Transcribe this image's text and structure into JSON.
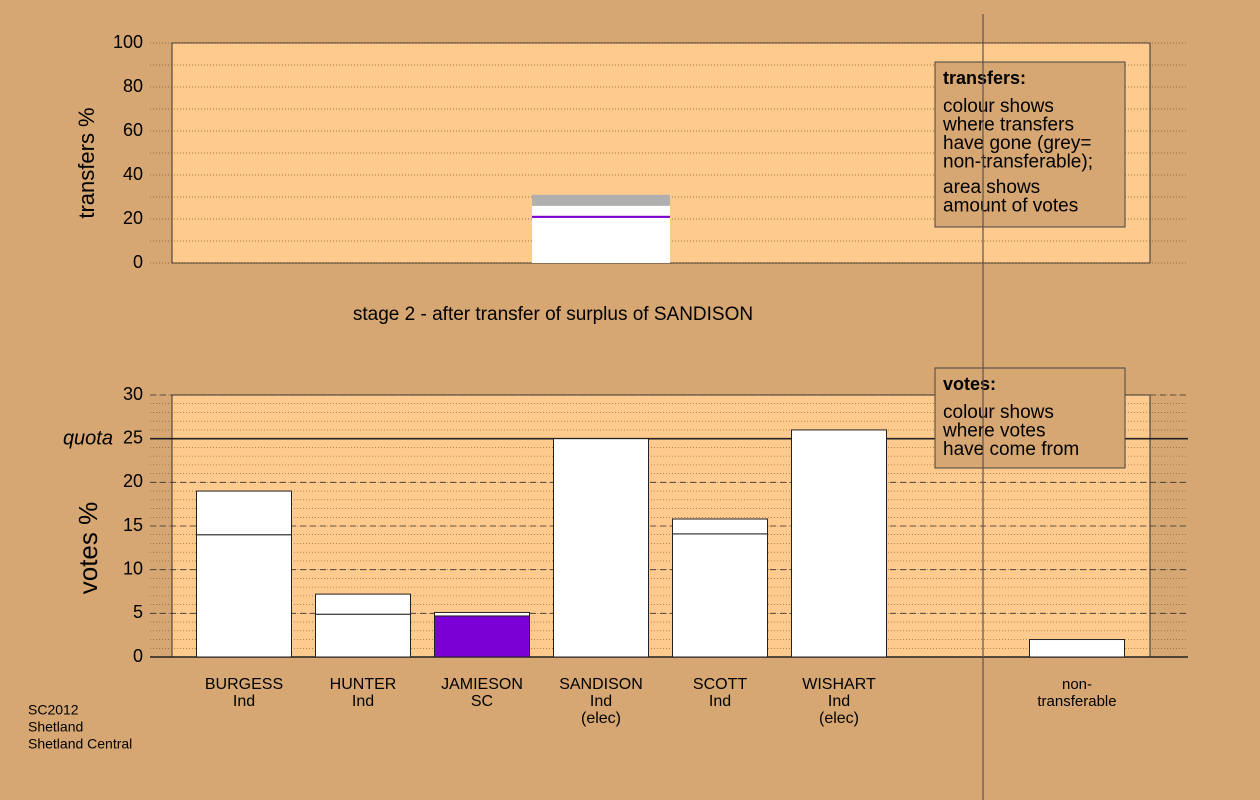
{
  "charts": [
    {
      "type": "stacked-bar",
      "ylabel": "transfers %",
      "ylim": [
        0,
        100
      ],
      "yticks": [
        0,
        20,
        40,
        60,
        80,
        100
      ],
      "segments": [
        {
          "color": "#ffffff",
          "value": 20.5
        },
        {
          "color": "#7a00d6",
          "value": 1
        },
        {
          "color": "#ffffff",
          "value": 4.5
        },
        {
          "color": "#b0b0b0",
          "value": 5
        }
      ],
      "annotation": {
        "title": "transfers:",
        "lines": [
          "colour shows",
          "where transfers",
          "have gone (grey=",
          "non-transferable);"
        ],
        "lines2": [
          "area shows",
          "amount of votes"
        ]
      }
    },
    {
      "type": "stacked-bar",
      "title": "stage 2 - after transfer of surplus of SANDISON",
      "ylabel": "votes %",
      "ylim": [
        0,
        30
      ],
      "yticks": [
        0,
        5,
        10,
        15,
        20,
        25,
        30
      ],
      "quota": {
        "label": "quota",
        "value": 25
      },
      "categories": [
        [
          "BURGESS",
          "Ind"
        ],
        [
          "HUNTER",
          "Ind"
        ],
        [
          "JAMIESON",
          "SC"
        ],
        [
          "SANDISON",
          "Ind",
          "(elec)"
        ],
        [
          "SCOTT",
          "Ind"
        ],
        [
          "WISHART",
          "Ind",
          "(elec)"
        ],
        null,
        [
          "non-",
          "transferable"
        ]
      ],
      "series": [
        {
          "colors": [
            "#ffffff",
            "#ffffff",
            "#7a00d6",
            "#ffffff",
            "#ffffff",
            "#ffffff",
            null,
            "#ffffff"
          ],
          "values": [
            14,
            4.9,
            4.7,
            25,
            14.1,
            26,
            null,
            2
          ]
        },
        {
          "color": "#ffffff",
          "values": [
            5,
            2.3,
            0.4,
            null,
            1.7,
            null,
            null,
            null
          ]
        }
      ],
      "annotation": {
        "title": "votes:",
        "lines": [
          "colour shows",
          "where votes",
          "have come from"
        ]
      }
    }
  ],
  "footer": [
    "SC2012",
    "Shetland",
    "Shetland Central"
  ]
}
